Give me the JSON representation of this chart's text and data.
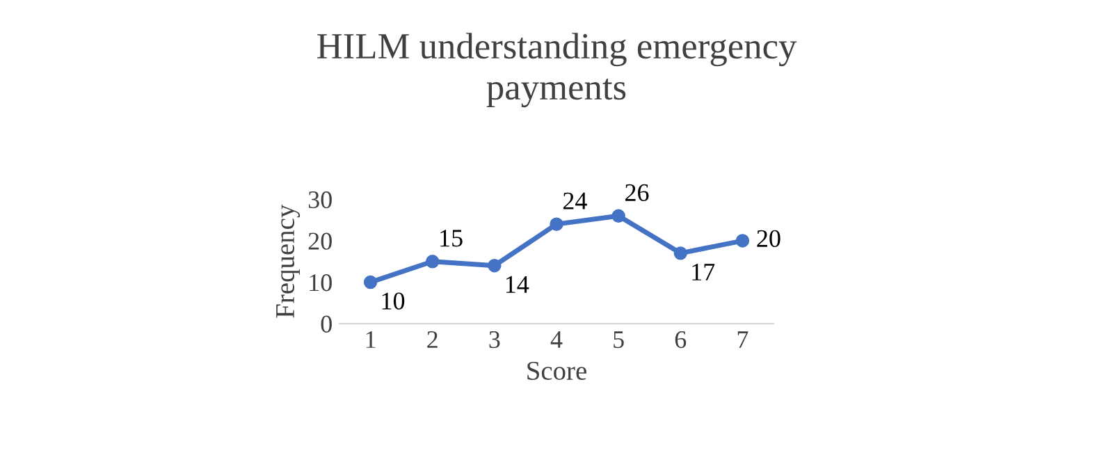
{
  "chart_data": {
    "type": "line",
    "title": "HILM understanding emergency\npayments",
    "xlabel": "Score",
    "ylabel": "Frequency",
    "categories": [
      "1",
      "2",
      "3",
      "4",
      "5",
      "6",
      "7"
    ],
    "series": [
      {
        "color": "#4472c4",
        "values": [
          10,
          15,
          14,
          24,
          26,
          17,
          20
        ]
      }
    ],
    "ylim": [
      0,
      30
    ],
    "yticks": [
      0,
      10,
      20,
      30
    ],
    "grid": false,
    "legend": false,
    "marker": "circle",
    "line_style": "solid",
    "data_labels": true
  }
}
